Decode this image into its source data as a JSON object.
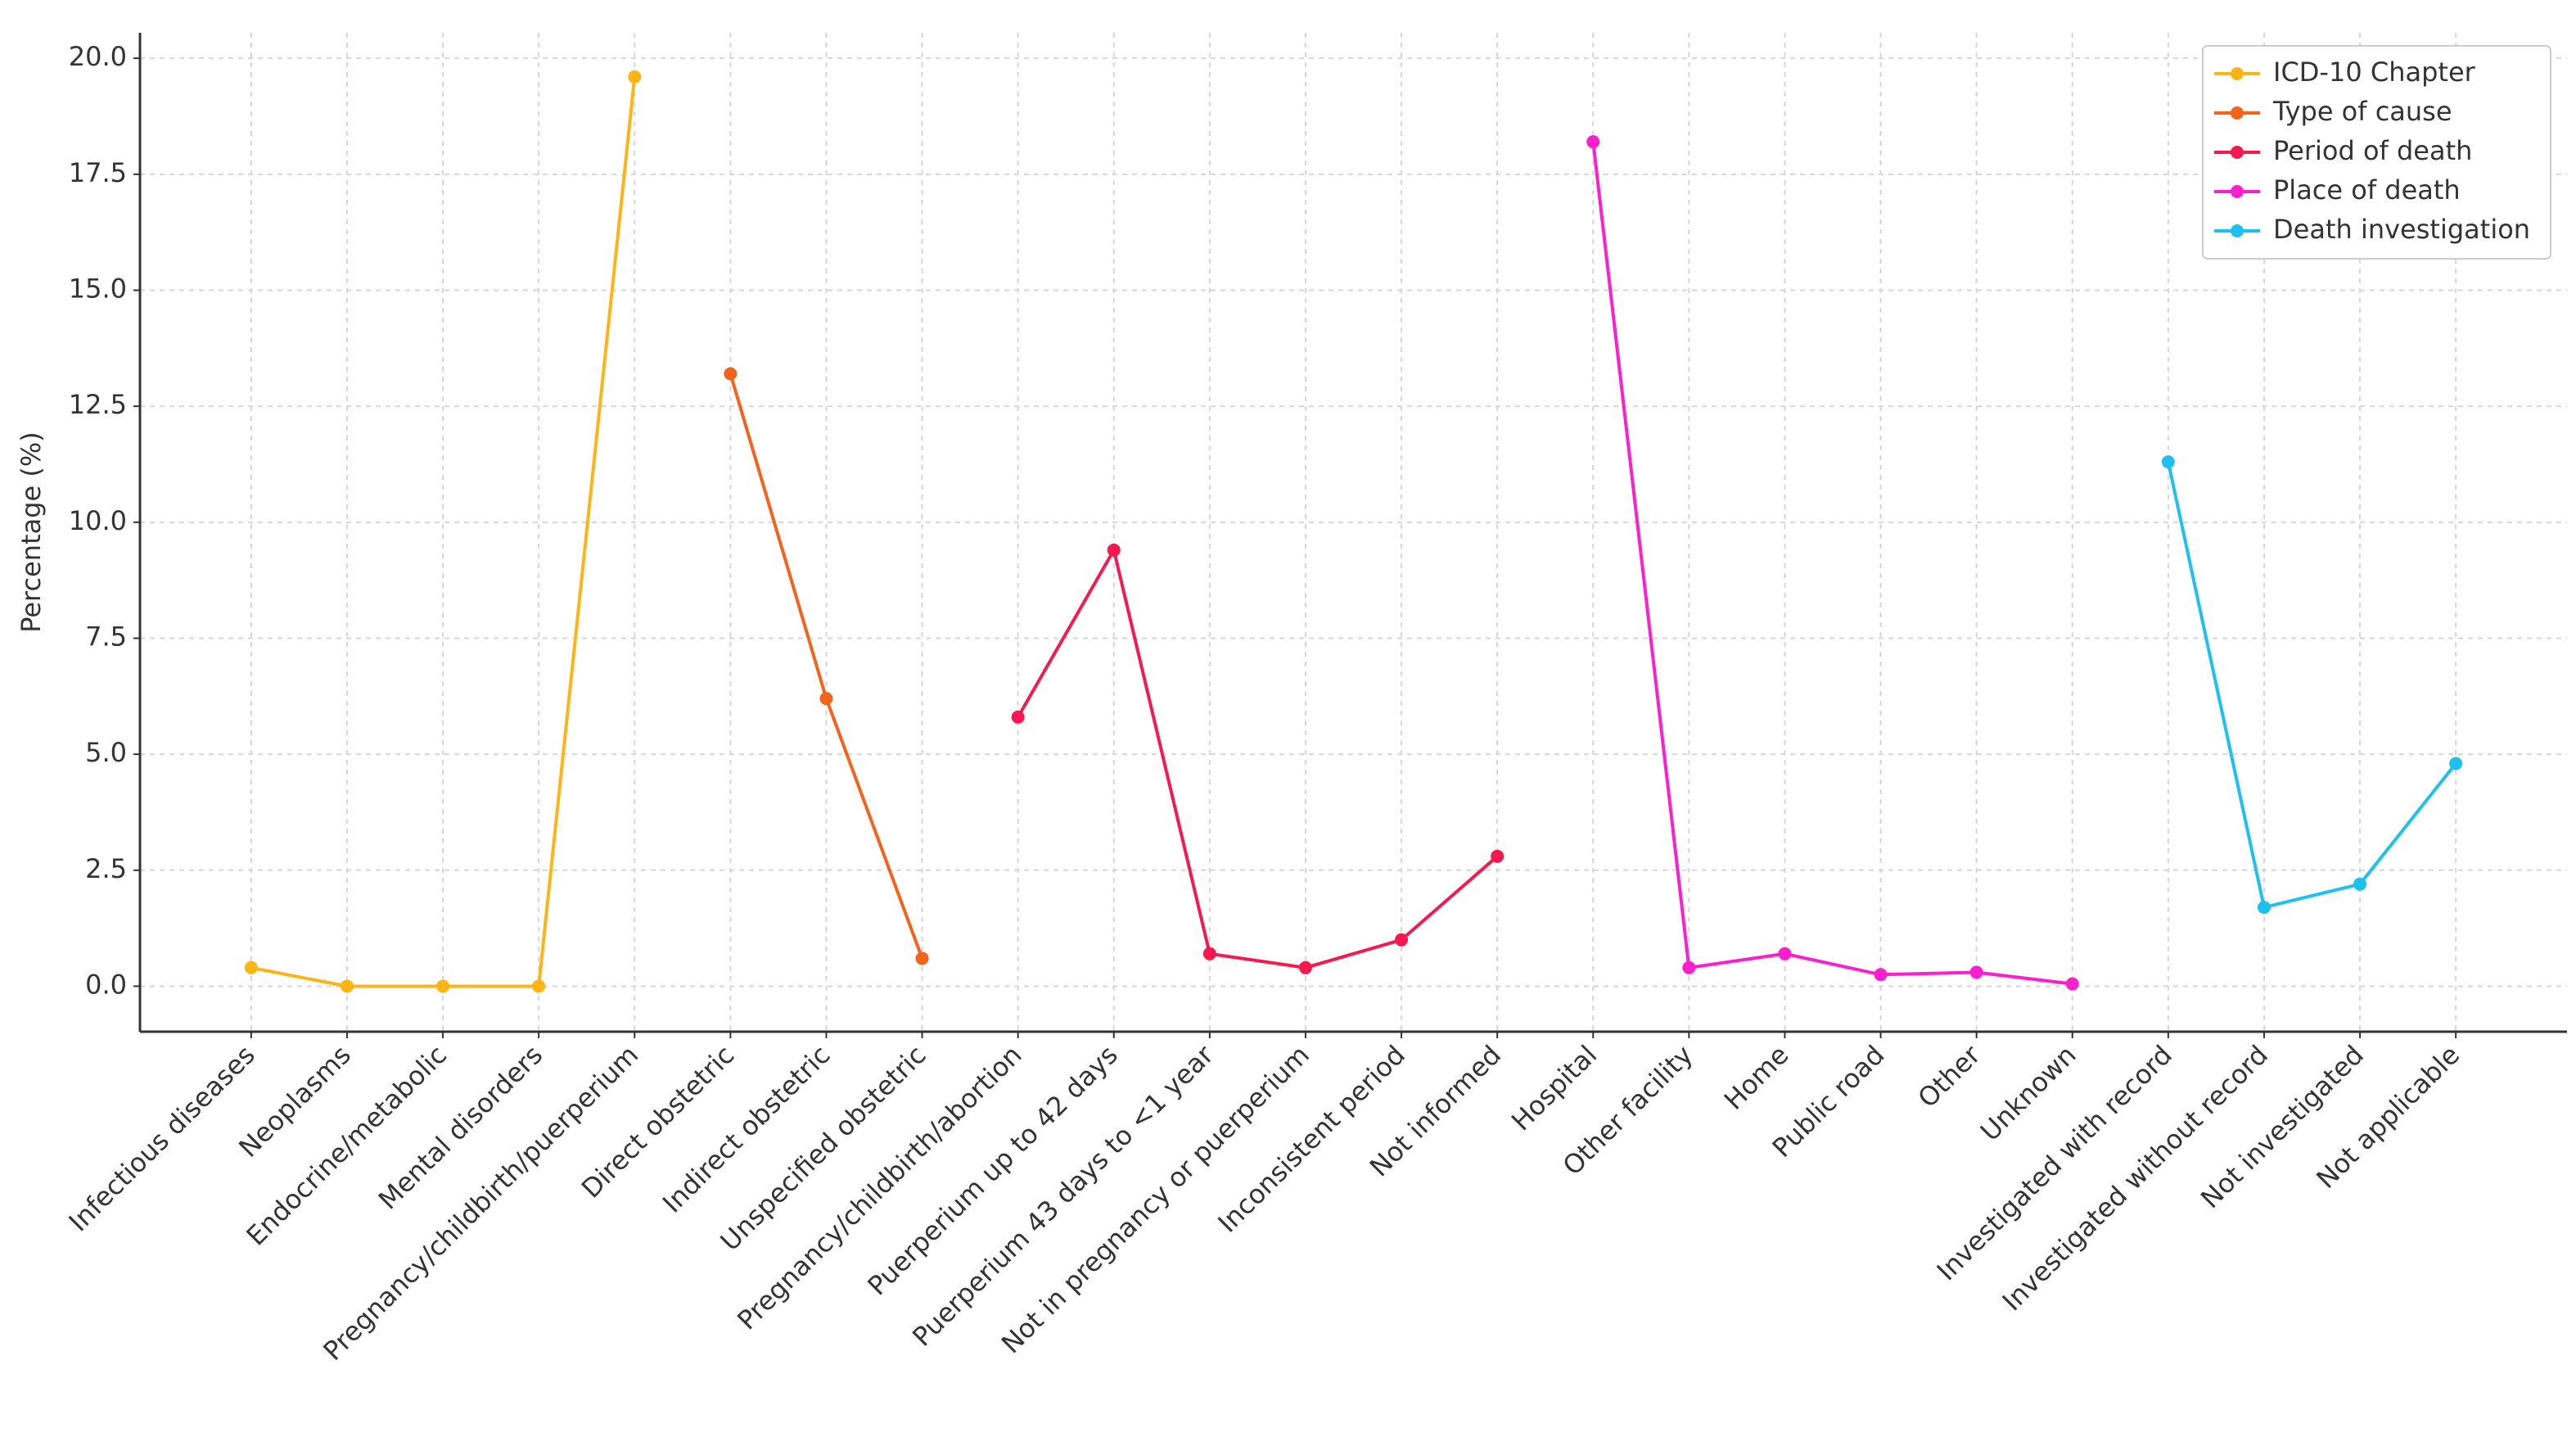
{
  "chart_data": {
    "type": "line",
    "ylabel": "Percentage (%)",
    "categories": [
      "Infectious diseases",
      "Neoplasms",
      "Endocrine/metabolic",
      "Mental disorders",
      "Pregnancy/childbirth/puerperium",
      "Direct obstetric",
      "Indirect obstetric",
      "Unspecified obstetric",
      "Pregnancy/childbirth/abortion",
      "Puerperium up to 42 days",
      "Puerperium 43 days to <1 year",
      "Not in pregnancy or puerperium",
      "Inconsistent period",
      "Not informed",
      "Hospital",
      "Other facility",
      "Home",
      "Public road",
      "Other",
      "Unknown",
      "Investigated with record",
      "Investigated without record",
      "Not investigated",
      "Not applicable"
    ],
    "series": [
      {
        "name": "ICD-10 Chapter",
        "color": "#fdb515",
        "values": [
          0.4,
          0.0,
          0.0,
          0.0,
          19.6,
          null,
          null,
          null,
          null,
          null,
          null,
          null,
          null,
          null,
          null,
          null,
          null,
          null,
          null,
          null,
          null,
          null,
          null,
          null
        ]
      },
      {
        "name": "Type of cause",
        "color": "#f4631b",
        "values": [
          null,
          null,
          null,
          null,
          null,
          13.2,
          6.2,
          0.6,
          null,
          null,
          null,
          null,
          null,
          null,
          null,
          null,
          null,
          null,
          null,
          null,
          null,
          null,
          null,
          null
        ]
      },
      {
        "name": "Period of death",
        "color": "#f5194f",
        "values": [
          null,
          null,
          null,
          null,
          null,
          null,
          null,
          null,
          5.8,
          9.4,
          0.7,
          0.4,
          1.0,
          2.8,
          null,
          null,
          null,
          null,
          null,
          null,
          null,
          null,
          null,
          null
        ]
      },
      {
        "name": "Place of death",
        "color": "#fb1fcd",
        "values": [
          null,
          null,
          null,
          null,
          null,
          null,
          null,
          null,
          null,
          null,
          null,
          null,
          null,
          null,
          18.2,
          0.4,
          0.7,
          0.25,
          0.3,
          0.05,
          null,
          null,
          null,
          null
        ]
      },
      {
        "name": "Death investigation",
        "color": "#1ec0f0",
        "values": [
          null,
          null,
          null,
          null,
          null,
          null,
          null,
          null,
          null,
          null,
          null,
          null,
          null,
          null,
          null,
          null,
          null,
          null,
          null,
          null,
          11.3,
          1.7,
          2.2,
          4.8
        ]
      }
    ],
    "ylim": [
      -0.98,
      20.55
    ],
    "yticks": [
      {
        "value": 0,
        "label": "0.0"
      },
      2.5,
      {
        "value": 5,
        "label": "5.0"
      },
      7.5,
      {
        "value": 10,
        "label": "10.0"
      },
      12.5,
      {
        "value": 15,
        "label": "15.0"
      },
      17.5,
      {
        "value": 20,
        "label": "20.0"
      }
    ],
    "grid": true,
    "legend": "upper right"
  }
}
